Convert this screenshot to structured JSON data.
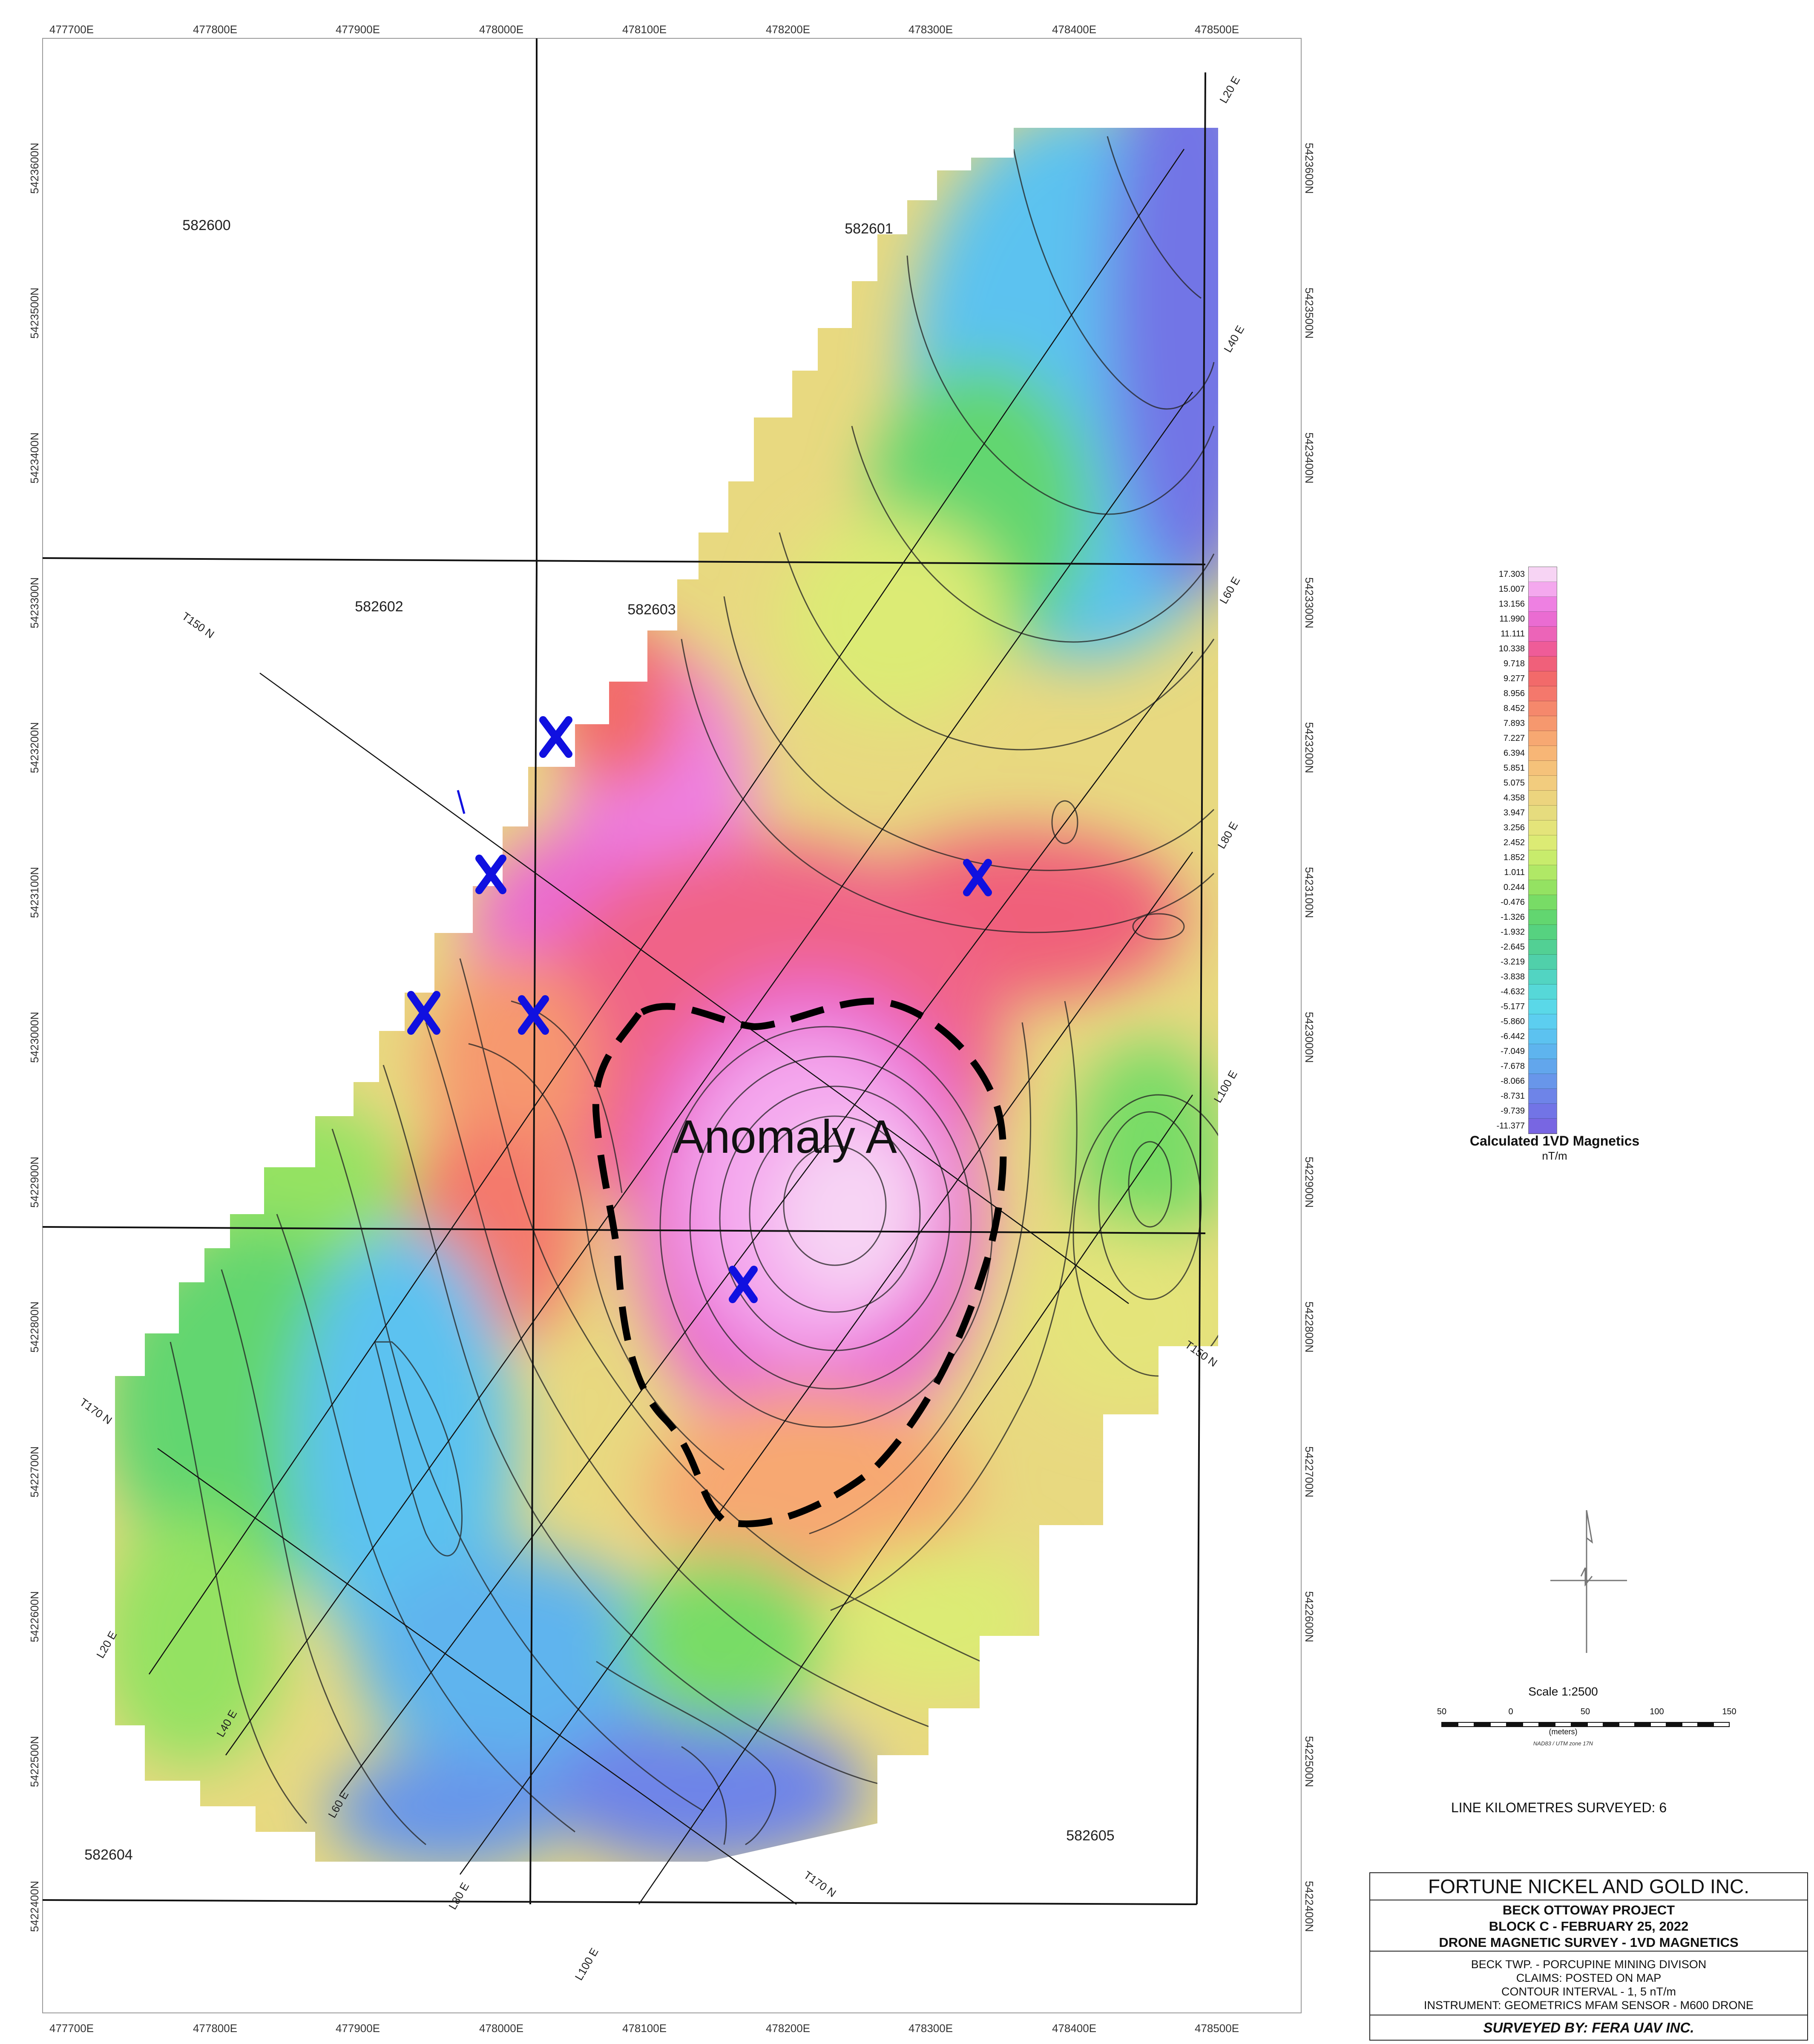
{
  "map": {
    "easting_labels": [
      "477700E",
      "477800E",
      "477900E",
      "478000E",
      "478100E",
      "478200E",
      "478300E",
      "478400E",
      "478500E"
    ],
    "northing_labels": [
      "5423600N",
      "5423500N",
      "5423400N",
      "5423300N",
      "5423200N",
      "5423100N",
      "5423000N",
      "5422900N",
      "5422800N",
      "5422700N",
      "5422600N",
      "5422500N",
      "5422400N"
    ],
    "claims": [
      "582600",
      "582601",
      "582602",
      "582603",
      "582604",
      "582605"
    ],
    "survey_lines": {
      "l20_top": "L20 E",
      "l40_top": "L40 E",
      "l60_top": "L60 E",
      "l80_top": "L80 E",
      "l100_top": "L100 E",
      "l20_bottom": "L20 E",
      "l40_bottom": "L40 E",
      "l60_bottom": "L60 E",
      "l80_bottom": "L80 E",
      "l100_bottom": "L100 E",
      "t150_left": "T150 N",
      "t150_right": "T150 N",
      "t170_left": "T170 N",
      "t170_right": "T170 N"
    },
    "anomaly_label": "Anomaly A",
    "colors": {
      "claim_lines": "#111111",
      "markers": "#1010e0",
      "anomaly_outline": "#000000"
    }
  },
  "legend": {
    "values": [
      "17.303",
      "15.007",
      "13.156",
      "11.990",
      "11.111",
      "10.338",
      "9.718",
      "9.277",
      "8.956",
      "8.452",
      "7.893",
      "7.227",
      "6.394",
      "5.851",
      "5.075",
      "4.358",
      "3.947",
      "3.256",
      "2.452",
      "1.852",
      "1.011",
      "0.244",
      "-0.476",
      "-1.326",
      "-1.932",
      "-2.645",
      "-3.219",
      "-3.838",
      "-4.632",
      "-5.177",
      "-5.860",
      "-6.442",
      "-7.049",
      "-7.678",
      "-8.066",
      "-8.731",
      "-9.739",
      "-11.377"
    ],
    "colors": [
      "#f7d4f4",
      "#f4a8ee",
      "#ee80e2",
      "#ea6cd2",
      "#ec64b8",
      "#ef5c98",
      "#f0607a",
      "#f26a6a",
      "#f4786c",
      "#f5886c",
      "#f6986e",
      "#f7a872",
      "#f7b676",
      "#f5c27a",
      "#f2cc7e",
      "#ecd47e",
      "#e6dc7e",
      "#e4e47a",
      "#dceb74",
      "#c8ec6c",
      "#b0e866",
      "#94e262",
      "#78dc66",
      "#62d670",
      "#56d280",
      "#52d094",
      "#50d0aa",
      "#52d4c2",
      "#56d8d8",
      "#5ad8e8",
      "#5ccef0",
      "#5cc2f0",
      "#5eb4ee",
      "#62a6ec",
      "#6896ea",
      "#6e84e8",
      "#7274e6",
      "#7866e2"
    ],
    "title": "Calculated 1VD Magnetics",
    "unit": "nT/m"
  },
  "scale": {
    "title": "Scale 1:2500",
    "ticks": [
      "50",
      "0",
      "50",
      "100",
      "150"
    ],
    "units": "(meters)",
    "datum": "NAD83 / UTM zone 17N"
  },
  "line_km": "LINE KILOMETRES SURVEYED: 6",
  "title_block": {
    "company": "FORTUNE NICKEL AND GOLD INC.",
    "project": "BECK OTTOWAY PROJECT",
    "block": "BLOCK C - FEBRUARY 25, 2022",
    "survey": "DRONE MAGNETIC SURVEY - 1VD MAGNETICS",
    "township": "BECK TWP. - PORCUPINE MINING DIVISON",
    "claims": "CLAIMS: POSTED ON MAP",
    "contour": "CONTOUR INTERVAL - 1, 5 nT/m",
    "instrument": "INSTRUMENT: GEOMETRICS MFAM SENSOR - M600 DRONE",
    "surveyed_by": "SURVEYED BY: FERA UAV INC."
  }
}
